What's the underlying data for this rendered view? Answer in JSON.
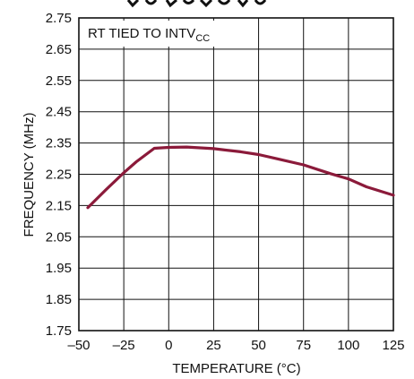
{
  "chart_data": {
    "type": "line",
    "title": "",
    "annotation": {
      "main": "RT TIED TO INTV",
      "subscript": "CC"
    },
    "xlabel": "TEMPERATURE (°C)",
    "ylabel": "FREQUENCY (MHz)",
    "xlim": [
      -50,
      125
    ],
    "ylim": [
      1.75,
      2.75
    ],
    "xticks": [
      -50,
      -25,
      0,
      25,
      50,
      75,
      100,
      125
    ],
    "xtick_labels": [
      "–50",
      "–25",
      "0",
      "25",
      "50",
      "75",
      "100",
      "125"
    ],
    "yticks": [
      1.75,
      1.85,
      1.95,
      2.05,
      2.15,
      2.25,
      2.35,
      2.45,
      2.55,
      2.65,
      2.75
    ],
    "ytick_labels": [
      "1.75",
      "1.85",
      "1.95",
      "2.05",
      "2.15",
      "2.25",
      "2.35",
      "2.45",
      "2.55",
      "2.65",
      "2.75"
    ],
    "grid": true,
    "line_color": "#8b1a3a",
    "series": [
      {
        "x": [
          -45,
          -35,
          -25,
          -18,
          -8,
          0,
          10,
          25,
          40,
          50,
          60,
          75,
          90,
          100,
          110,
          125
        ],
        "y": [
          2.143,
          2.2,
          2.255,
          2.29,
          2.333,
          2.336,
          2.337,
          2.332,
          2.322,
          2.313,
          2.3,
          2.28,
          2.252,
          2.235,
          2.21,
          2.183
        ]
      }
    ]
  }
}
